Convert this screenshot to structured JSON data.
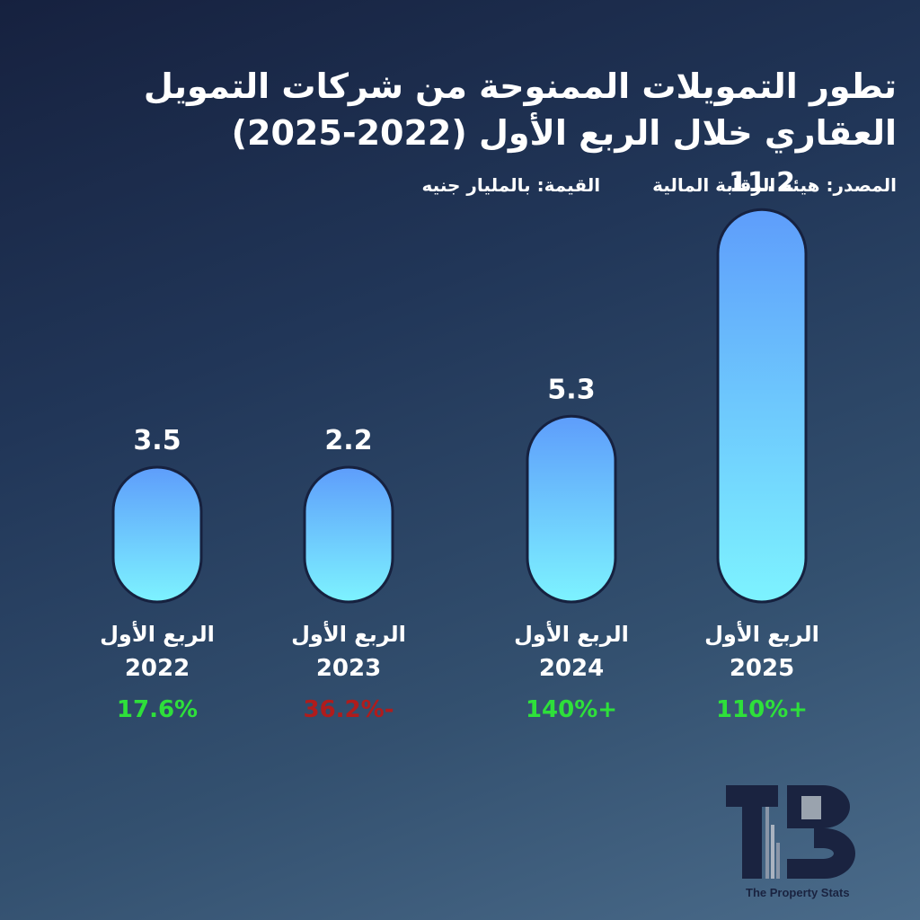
{
  "chart_data": {
    "type": "bar",
    "title": "تطور التمويلات الممنوحة من شركات التمويل العقاري خلال الربع الأول (2022-2025)",
    "source": "المصدر: هيئة الرقابة المالية",
    "unit": "القيمة: بالمليار جنيه",
    "categories": [
      {
        "quarter": "الربع الأول",
        "year": "2022"
      },
      {
        "quarter": "الربع الأول",
        "year": "2023"
      },
      {
        "quarter": "الربع الأول",
        "year": "2024"
      },
      {
        "quarter": "الربع الأول",
        "year": "2025"
      }
    ],
    "values": [
      3.5,
      2.2,
      5.3,
      11.2
    ],
    "value_labels": [
      "3.5",
      "2.2",
      "5.3",
      "11.2"
    ],
    "changes": [
      {
        "text": "17.6%",
        "direction": "up"
      },
      {
        "text": "36.2%-",
        "direction": "down"
      },
      {
        "text": "140%+",
        "direction": "up"
      },
      {
        "text": "110%+",
        "direction": "up"
      }
    ],
    "colors": {
      "bar_top": "#5e9dfb",
      "bar_bottom": "#7df3ff",
      "up": "#2ee03a",
      "down": "#b01c1c",
      "text": "#ffffff"
    }
  },
  "brand": {
    "name": "The Property Stats",
    "logo_letters": "TPS"
  }
}
